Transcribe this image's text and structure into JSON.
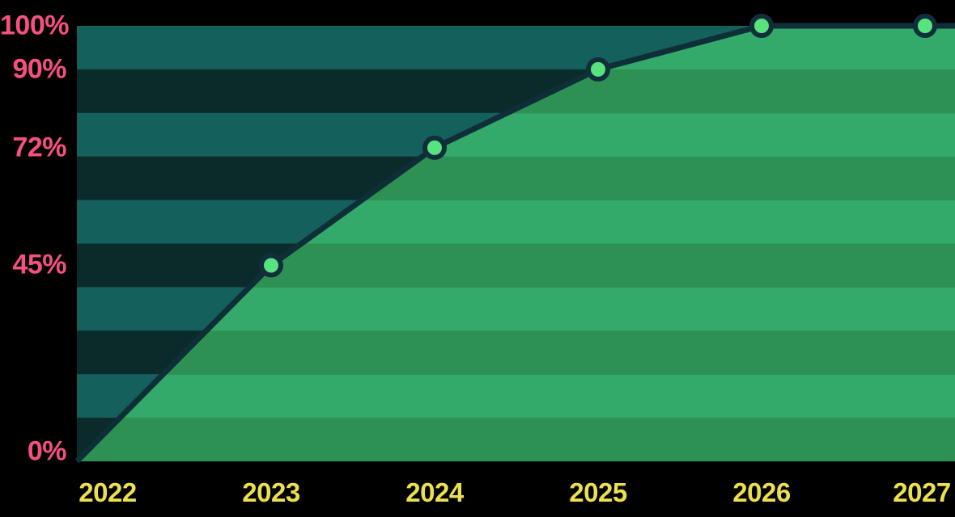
{
  "page": {
    "background": "#000000"
  },
  "chart_data": {
    "type": "area",
    "title": "",
    "x_categories": [
      "2022",
      "2023",
      "2024",
      "2025",
      "2026",
      "2027"
    ],
    "values": [
      0,
      45,
      72,
      90,
      100,
      100
    ],
    "unit": "%",
    "ylim": [
      0,
      100
    ],
    "y_tick_labels": [
      "100%",
      "90%",
      "72%",
      "45%",
      "0%"
    ],
    "y_tick_values": [
      100,
      90,
      72,
      45,
      0
    ],
    "x_tick_labels": [
      "2022",
      "2023",
      "2024",
      "2025",
      "2026",
      "2027"
    ],
    "markers_shown_for": [
      "2023",
      "2024",
      "2025",
      "2026",
      "2027"
    ],
    "legend": "none",
    "grid_style": "alternating horizontal stripes, 10 bands of 10% each",
    "colors": {
      "background": "#000000",
      "stripe_teal": "#14605C",
      "stripe_dark": "#0B2B2A",
      "area_light": "#33AA69",
      "area_dark": "#2E9154",
      "line": "#0F2F38",
      "marker_fill": "#57E47F",
      "marker_ring": "#112F3A",
      "y_label_color": "#F6517E",
      "x_label_color": "#ECE04E"
    }
  }
}
